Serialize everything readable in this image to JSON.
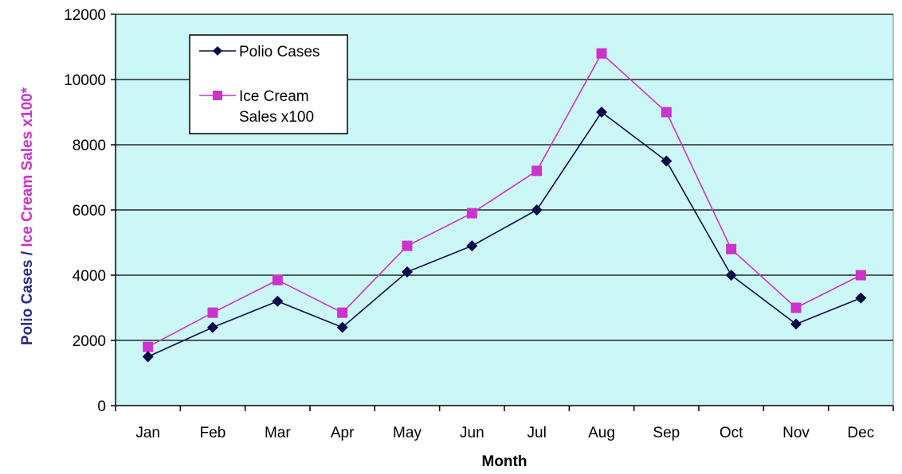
{
  "chart_data": {
    "type": "line",
    "title": "",
    "categories": [
      "Jan",
      "Feb",
      "Mar",
      "Apr",
      "May",
      "Jun",
      "Jul",
      "Aug",
      "Sep",
      "Oct",
      "Nov",
      "Dec"
    ],
    "series": [
      {
        "name": "Polio Cases",
        "color": "#0a0a4a",
        "marker": "diamond",
        "values": [
          1500,
          2400,
          3200,
          2400,
          4100,
          4900,
          6000,
          9000,
          7500,
          4000,
          2500,
          3300
        ]
      },
      {
        "name_lines": [
          "Ice Cream",
          "Sales x100"
        ],
        "color": "#cc33cc",
        "marker": "square",
        "values": [
          1800,
          2850,
          3850,
          2850,
          4900,
          5900,
          7200,
          10800,
          9000,
          4800,
          3000,
          4000
        ]
      }
    ],
    "xlabel": "Month",
    "ylabel_parts": [
      {
        "text": "Polio Cases / ",
        "color": "#2a2a8c"
      },
      {
        "text": "Ice Cream Sales x100*",
        "color": "#cc33cc"
      }
    ],
    "ylim": [
      0,
      12000
    ],
    "yticks": [
      0,
      2000,
      4000,
      6000,
      8000,
      10000,
      12000
    ],
    "grid": true,
    "plot_background": "#ccf7f7",
    "legend_position": "top-left"
  }
}
